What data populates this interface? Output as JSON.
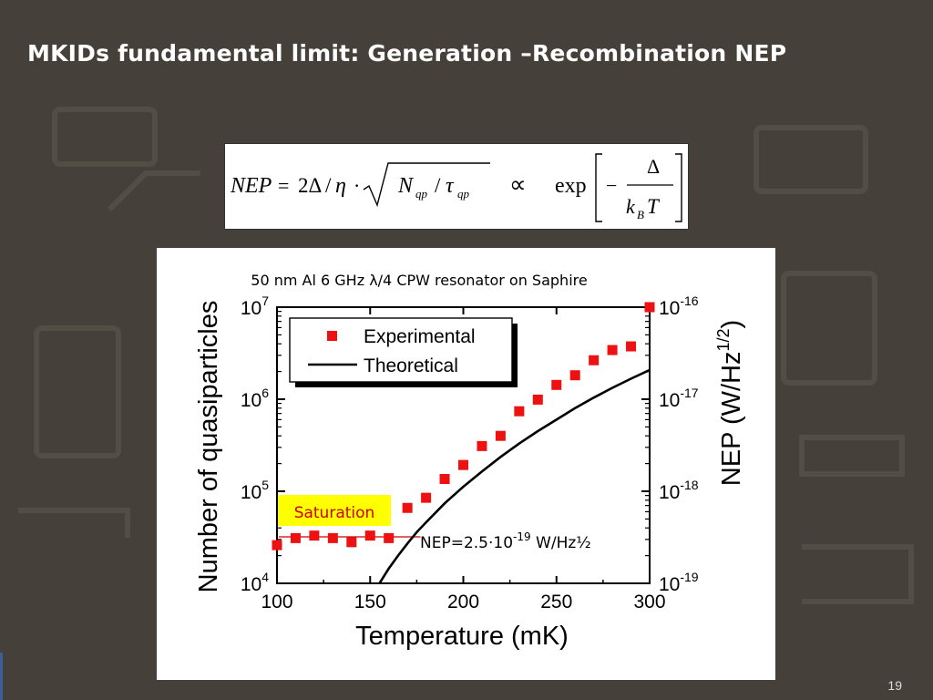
{
  "slide": {
    "title": "MKIDs fundamental limit: Generation –Recombination NEP",
    "page_number": "19"
  },
  "formula": {
    "lhs": "NEP = 2Δ / η · √(N_qp / τ_qp)",
    "proportional": "∝",
    "rhs": "exp[−Δ / k_B T]"
  },
  "chart_data": {
    "type": "scatter",
    "title": "50 nm Al 6 GHz λ/4 CPW resonator on Saphire",
    "xlabel": "Temperature (mK)",
    "ylabel": "Number of quasiparticles",
    "y2label": "NEP (W/Hz^1/2)",
    "xlim": [
      100,
      300
    ],
    "ylim": [
      10000,
      10000000
    ],
    "y_scale": "log",
    "y2lim": [
      1e-19,
      1e-16
    ],
    "y2_scale": "log",
    "x_ticks": [
      "100",
      "150",
      "200",
      "250",
      "300"
    ],
    "y_ticks": [
      "10^4",
      "10^5",
      "10^6",
      "10^7"
    ],
    "y2_ticks": [
      "10^-19",
      "10^-18",
      "10^-17",
      "10^-16"
    ],
    "legend_position": "top-left",
    "series": [
      {
        "name": "Experimental",
        "marker": "square",
        "color": "#ee1111",
        "x": [
          100,
          110,
          120,
          130,
          140,
          150,
          160,
          170,
          180,
          190,
          200,
          210,
          220,
          230,
          240,
          250,
          260,
          270,
          280,
          290,
          300
        ],
        "y": [
          26000,
          31000,
          33000,
          31000,
          28000,
          33000,
          31000,
          66000,
          85000,
          136000,
          193000,
          310000,
          400000,
          740000,
          990000,
          1430000,
          1820000,
          2650000,
          3420000,
          3750000,
          10000000
        ]
      },
      {
        "name": "Theoretical",
        "line": "solid",
        "color": "#000000",
        "x": [
          155,
          160,
          165,
          170,
          175,
          180,
          190,
          200,
          210,
          220,
          230,
          240,
          250,
          260,
          270,
          280,
          290,
          300
        ],
        "y": [
          10000,
          14500,
          20000,
          27000,
          36000,
          46000,
          74000,
          112000,
          164000,
          236000,
          330000,
          450000,
          600000,
          800000,
          1040000,
          1330000,
          1670000,
          2080000
        ]
      }
    ],
    "annotations": {
      "saturation_label": "Saturation",
      "saturation_color": "#ffff00",
      "saturation_text_color": "#cc0000",
      "nep_prefix": "NEP=2.5·10",
      "nep_exponent": "-19",
      "nep_suffix": " W/Hz½"
    }
  }
}
